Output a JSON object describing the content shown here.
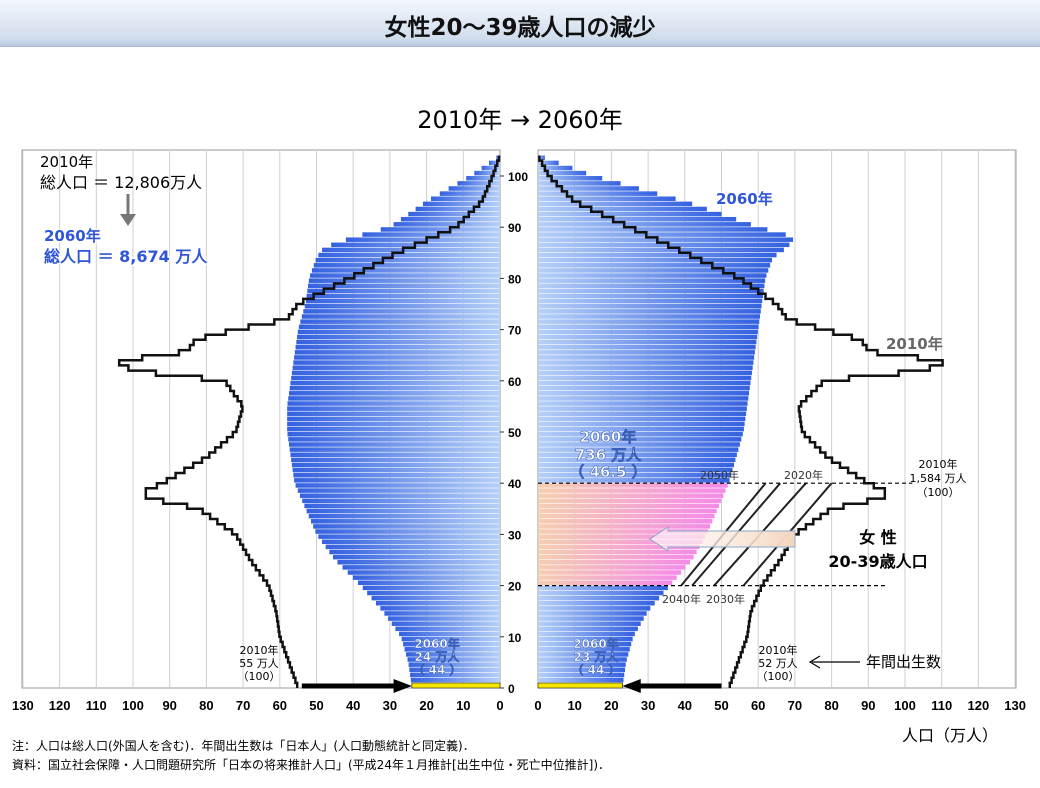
{
  "header": {
    "title": "女性20〜39歳人口の減少",
    "subtitle": "2010年 → 2060年"
  },
  "chart_data": {
    "type": "population-pyramid",
    "yticks": [
      0,
      10,
      20,
      30,
      40,
      50,
      60,
      70,
      80,
      90,
      100
    ],
    "left_xticks": [
      130,
      120,
      110,
      100,
      90,
      80,
      70,
      60,
      50,
      40,
      30,
      20,
      10,
      0
    ],
    "right_xticks": [
      0,
      10,
      20,
      30,
      40,
      50,
      60,
      70,
      80,
      90,
      100,
      110,
      120,
      130
    ],
    "xlabel": "人口（万人）",
    "series_2010_male": {
      "name": "2010年",
      "ages": [
        0,
        2,
        4,
        6,
        8,
        10,
        15,
        20,
        25,
        30,
        35,
        37,
        38,
        40,
        45,
        50,
        55,
        60,
        62,
        64,
        65,
        66,
        68,
        70,
        72,
        75,
        80,
        85,
        90,
        95,
        100,
        104
      ],
      "values": [
        55,
        56,
        57,
        58,
        59,
        60,
        61,
        63,
        68,
        72,
        82,
        95,
        98,
        92,
        80,
        72,
        70,
        75,
        100,
        105,
        90,
        85,
        83,
        72,
        58,
        55,
        41,
        28,
        12,
        5,
        2,
        0
      ]
    },
    "series_2010_female": {
      "name": "2010年",
      "ages": [
        0,
        2,
        4,
        6,
        8,
        10,
        15,
        20,
        25,
        30,
        35,
        37,
        38,
        40,
        45,
        50,
        55,
        60,
        62,
        64,
        65,
        66,
        68,
        70,
        72,
        75,
        80,
        85,
        90,
        95,
        100,
        104
      ],
      "values": [
        52,
        53,
        54,
        55,
        56,
        57,
        58,
        61,
        66,
        70,
        80,
        93,
        96,
        90,
        79,
        72,
        71,
        78,
        105,
        112,
        95,
        90,
        88,
        78,
        68,
        65,
        55,
        40,
        25,
        10,
        3,
        0
      ]
    },
    "series_2060_male": {
      "name": "2060年",
      "ages": [
        0,
        5,
        10,
        15,
        20,
        25,
        30,
        35,
        40,
        45,
        50,
        55,
        60,
        65,
        70,
        75,
        80,
        84,
        86,
        88,
        90,
        95,
        100,
        104
      ],
      "values": [
        24,
        25,
        27,
        32,
        38,
        45,
        50,
        53,
        56,
        57,
        58,
        58,
        57,
        56,
        55,
        53,
        52,
        50,
        48,
        40,
        30,
        20,
        8,
        0
      ]
    },
    "series_2060_female": {
      "name": "2060年",
      "ages": [
        0,
        5,
        10,
        15,
        20,
        25,
        30,
        35,
        40,
        45,
        50,
        55,
        60,
        65,
        70,
        75,
        80,
        84,
        86,
        88,
        90,
        95,
        100,
        104
      ],
      "values": [
        23,
        24,
        26,
        30,
        36,
        42,
        46,
        49,
        52,
        54,
        56,
        57,
        58,
        59,
        60,
        61,
        62,
        64,
        68,
        70,
        60,
        40,
        15,
        0
      ]
    },
    "annotations": {
      "total_2010_year": "2010年",
      "total_2010": "総人口 ＝ 12,806万人",
      "total_2060_year": "2060年",
      "total_2060": "総人口 ＝ 8,674 万人",
      "female_2060_year": "2060年",
      "female_2060": "736 万人",
      "female_2060_index": "（ 46.5 ）",
      "label_2060": "2060年",
      "label_2010": "2010年",
      "label_2050": "2050年",
      "label_2020": "2020年",
      "label_2040": "2040年",
      "label_2030": "2030年",
      "female_2010_year": "2010年",
      "female_2010": "1,584 万人",
      "female_2010_index": "（100）",
      "female_group_line1": "女 性",
      "female_group_line2": "20-39歳人口",
      "births_label": "年間出生数",
      "male_birth_2010_year": "2010年",
      "male_birth_2010": "55 万人",
      "male_birth_2010_index": "（100）",
      "male_birth_2060_year": "2060年",
      "male_birth_2060": "24 万人",
      "male_birth_2060_index": "（ 44 ）",
      "female_birth_2060_year": "2060年",
      "female_birth_2060": "23 万人",
      "female_birth_2060_index": "（ 44 ）",
      "female_birth_2010_year": "2010年",
      "female_birth_2010": "52 万人",
      "female_birth_2010_index": "（100）"
    },
    "colors": {
      "blue_light": "#b6d0f8",
      "blue_dark": "#3461e0",
      "pink": "#f58ae8",
      "peach": "#f5cfb0"
    }
  },
  "notes": {
    "line1": "注：人口は総人口(外国人を含む)．年間出生数は「日本人」(人口動態統計と同定義)．",
    "line2": "資料：国立社会保障・人口問題研究所「日本の将来推計人口」(平成24年１月推計[出生中位・死亡中位推計])．"
  }
}
